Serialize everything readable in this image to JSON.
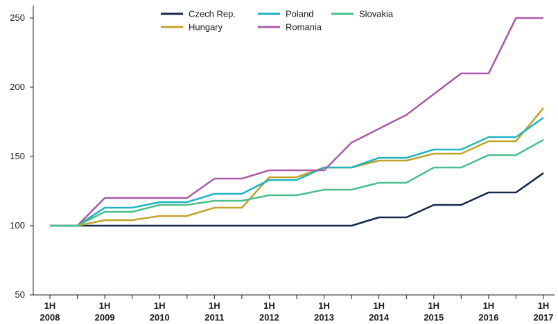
{
  "chart_data": {
    "type": "line",
    "title": "",
    "xlabel": "",
    "ylabel": "",
    "ylim": [
      50,
      250
    ],
    "yticks": [
      50,
      100,
      150,
      200,
      250
    ],
    "xlim": [
      2008,
      2017
    ],
    "x_tick_labels": [
      {
        "x": 2008,
        "line1": "1H",
        "line2": "2008"
      },
      {
        "x": 2009,
        "line1": "1H",
        "line2": "2009"
      },
      {
        "x": 2010,
        "line1": "1H",
        "line2": "2010"
      },
      {
        "x": 2011,
        "line1": "1H",
        "line2": "2011"
      },
      {
        "x": 2012,
        "line1": "1H",
        "line2": "2012"
      },
      {
        "x": 2013,
        "line1": "1H",
        "line2": "2013"
      },
      {
        "x": 2014,
        "line1": "1H",
        "line2": "2014"
      },
      {
        "x": 2015,
        "line1": "1H",
        "line2": "2015"
      },
      {
        "x": 2016,
        "line1": "1H",
        "line2": "2016"
      },
      {
        "x": 2017,
        "line1": "1H",
        "line2": "2017"
      }
    ],
    "grid": false,
    "legend_position": "top-center",
    "x": [
      2008,
      2008.5,
      2009,
      2009.5,
      2010,
      2010.5,
      2011,
      2011.5,
      2012,
      2012.5,
      2013,
      2013.5,
      2014,
      2014.5,
      2015,
      2015.5,
      2016,
      2016.5,
      2017
    ],
    "series": [
      {
        "name": "Czech Rep.",
        "color": "#13294b",
        "values": [
          100,
          100,
          100,
          100,
          100,
          100,
          100,
          100,
          100,
          100,
          100,
          100,
          106,
          106,
          115,
          115,
          124,
          124,
          138
        ]
      },
      {
        "name": "Hungary",
        "color": "#c5a22b",
        "values": [
          100,
          100,
          104,
          104,
          107,
          107,
          113,
          113,
          135,
          135,
          142,
          142,
          147,
          147,
          152,
          152,
          161,
          161,
          185
        ]
      },
      {
        "name": "Poland",
        "color": "#1fb5c2",
        "values": [
          100,
          100,
          113,
          113,
          117,
          117,
          123,
          123,
          133,
          133,
          142,
          142,
          149,
          149,
          155,
          155,
          164,
          164,
          178
        ]
      },
      {
        "name": "Romania",
        "color": "#a95ca8",
        "values": [
          100,
          100,
          120,
          120,
          120,
          120,
          134,
          134,
          140,
          140,
          140,
          160,
          170,
          180,
          195,
          210,
          210,
          250,
          250
        ]
      },
      {
        "name": "Slovakia",
        "color": "#4bbf8b",
        "values": [
          100,
          100,
          110,
          110,
          115,
          115,
          118,
          118,
          122,
          122,
          126,
          126,
          131,
          131,
          142,
          142,
          151,
          151,
          162
        ]
      }
    ]
  }
}
